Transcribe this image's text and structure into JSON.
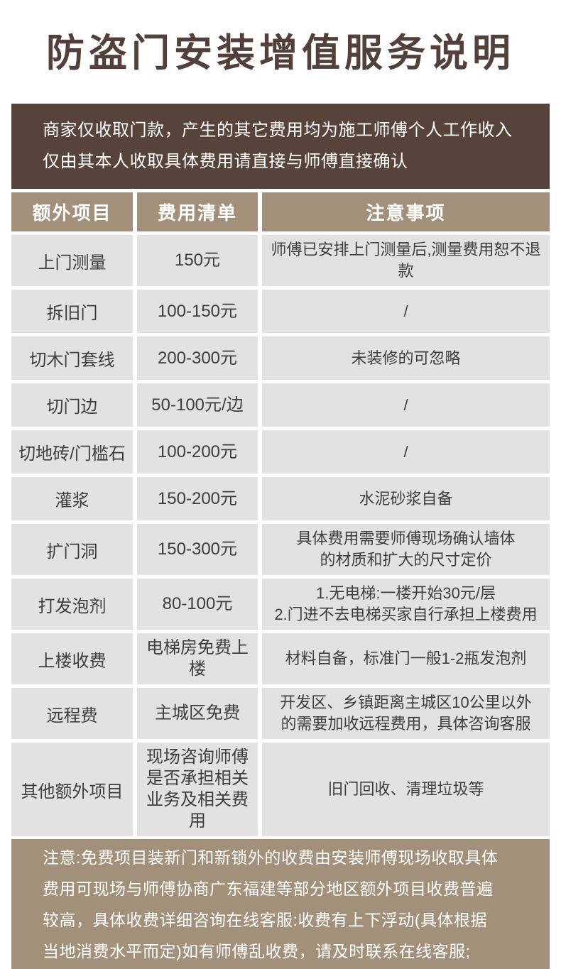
{
  "title": "防盗门安装增值服务说明",
  "notice": {
    "text": "商家仅收取门款，产生的其它费用均为施工师傅个人工作收入\n仅由其本人收取具体费用请直接与师傅直接确认"
  },
  "table": {
    "headers": [
      "额外项目",
      "费用清单",
      "注意事项"
    ],
    "rows": [
      {
        "item": "上门测量",
        "fee": "150元",
        "note": "师傅已安排上门测量后,测量费用恕不退款"
      },
      {
        "item": "拆旧门",
        "fee": "100-150元",
        "note": "/"
      },
      {
        "item": "切木门套线",
        "fee": "200-300元",
        "note": "未装修的可忽略"
      },
      {
        "item": "切门边",
        "fee": "50-100元/边",
        "note": "/"
      },
      {
        "item": "切地砖/门槛石",
        "fee": "100-200元",
        "note": "/"
      },
      {
        "item": "灌浆",
        "fee": "150-200元",
        "note": "水泥砂浆自备"
      },
      {
        "item": "扩门洞",
        "fee": "150-300元",
        "note": "具体费用需要师傅现场确认墙体\n的材质和扩大的尺寸定价"
      },
      {
        "item": "打发泡剂",
        "fee": "80-100元",
        "note": "1.无电梯:一楼开始30元/层\n2.门进不去电梯买家自行承担上楼费用"
      },
      {
        "item": "上楼收费",
        "fee": "电梯房免费上楼",
        "note": "材料自备，标准门一般1-2瓶发泡剂"
      },
      {
        "item": "远程费",
        "fee": "主城区免费",
        "note": "开发区、乡镇距离主城区10公里以外\n的需要加收远程费用，具体咨询客服"
      },
      {
        "item": "其他额外项目",
        "fee": "现场咨询师傅\n是否承担相关\n业务及相关费用",
        "note": "旧门回收、清理垃圾等"
      }
    ]
  },
  "footer": {
    "text": "注意:免费项目装新门和新锁外的收费由安装师傅现场收取具体\n费用可现场与师傅协商广东福建等部分地区额外项目收费普遍\n较高，具体收费详细咨询在线客服:收费有上下浮动(具体根据\n当地消费水平而定)如有师傅乱收费，请及时联系在线客服;"
  },
  "colors": {
    "title_brown": "#53403a",
    "notice_bg": "#57433a",
    "header_tan": "#a3907a",
    "row_gray": "#e3e2e0",
    "cell_text": "#3e3e3e",
    "gap_white": "#ffffff"
  }
}
